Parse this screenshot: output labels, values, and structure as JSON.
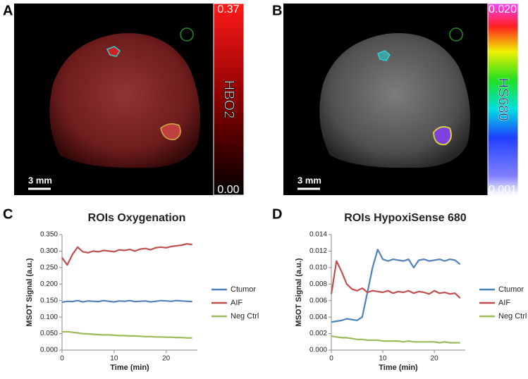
{
  "panels": [
    {
      "letter": "A",
      "scale": "3 mm",
      "cbar_max": "0.37",
      "cbar_min": "0.00",
      "cbar_label": "HBO2"
    },
    {
      "letter": "B",
      "scale": "3 mm",
      "cbar_max": "0.020",
      "cbar_min": "0.001",
      "cbar_label": "HS680"
    }
  ],
  "chart_data": [
    {
      "type": "line",
      "panel_label": "C",
      "title": "ROIs Oxygenation",
      "x_label": "Time (min)",
      "y_label": "MSOT Signal (a.u.)",
      "x": [
        0,
        1,
        2,
        3,
        4,
        5,
        6,
        7,
        8,
        9,
        10,
        11,
        12,
        13,
        14,
        15,
        16,
        17,
        18,
        19,
        20,
        21,
        22,
        23,
        24,
        25
      ],
      "xlim": [
        0,
        26
      ],
      "xticks": [
        0,
        10,
        20
      ],
      "ylim": [
        0,
        0.35
      ],
      "yticks": [
        {
          "value": 0,
          "label": "0.000"
        },
        {
          "value": 0.05,
          "label": "0.050"
        },
        {
          "value": 0.1,
          "label": "0.100"
        },
        {
          "value": 0.15,
          "label": "0.150"
        },
        {
          "value": 0.2,
          "label": "0.200"
        },
        {
          "value": 0.25,
          "label": "0.250"
        },
        {
          "value": 0.3,
          "label": "0.300"
        },
        {
          "value": 0.35,
          "label": "0.350"
        }
      ],
      "series": [
        {
          "name": "Ctumor",
          "color": "#4f81bd",
          "values": [
            0.145,
            0.148,
            0.147,
            0.15,
            0.146,
            0.149,
            0.148,
            0.147,
            0.15,
            0.148,
            0.146,
            0.149,
            0.148,
            0.15,
            0.147,
            0.148,
            0.149,
            0.146,
            0.148,
            0.15,
            0.149,
            0.148,
            0.15,
            0.149,
            0.148,
            0.147
          ]
        },
        {
          "name": "AIF",
          "color": "#c0504d",
          "values": [
            0.28,
            0.258,
            0.29,
            0.312,
            0.298,
            0.295,
            0.3,
            0.298,
            0.302,
            0.3,
            0.298,
            0.304,
            0.302,
            0.305,
            0.3,
            0.306,
            0.308,
            0.304,
            0.31,
            0.312,
            0.31,
            0.314,
            0.316,
            0.318,
            0.322,
            0.32
          ]
        },
        {
          "name": "Neg Ctrl",
          "color": "#9bbb59",
          "values": [
            0.055,
            0.056,
            0.054,
            0.052,
            0.05,
            0.049,
            0.048,
            0.047,
            0.046,
            0.046,
            0.045,
            0.044,
            0.044,
            0.043,
            0.043,
            0.042,
            0.041,
            0.041,
            0.04,
            0.04,
            0.039,
            0.039,
            0.038,
            0.038,
            0.037,
            0.037
          ]
        }
      ]
    },
    {
      "type": "line",
      "panel_label": "D",
      "title": "ROIs HypoxiSense 680",
      "x_label": "Time (min)",
      "y_label": "MSOT Signal (a.u.)",
      "x": [
        0,
        1,
        2,
        3,
        4,
        5,
        6,
        7,
        8,
        9,
        10,
        11,
        12,
        13,
        14,
        15,
        16,
        17,
        18,
        19,
        20,
        21,
        22,
        23,
        24,
        25
      ],
      "xlim": [
        0,
        26
      ],
      "xticks": [
        0,
        10,
        20
      ],
      "ylim": [
        0,
        0.014
      ],
      "yticks": [
        {
          "value": 0,
          "label": "0.000"
        },
        {
          "value": 0.002,
          "label": "0.002"
        },
        {
          "value": 0.004,
          "label": "0.004"
        },
        {
          "value": 0.006,
          "label": "0.006"
        },
        {
          "value": 0.008,
          "label": "0.008"
        },
        {
          "value": 0.01,
          "label": "0.010"
        },
        {
          "value": 0.012,
          "label": "0.012"
        },
        {
          "value": 0.014,
          "label": "0.014"
        }
      ],
      "series": [
        {
          "name": "Ctumor",
          "color": "#4f81bd",
          "values": [
            0.0034,
            0.0035,
            0.0036,
            0.0038,
            0.0037,
            0.0036,
            0.004,
            0.007,
            0.01,
            0.0122,
            0.011,
            0.0108,
            0.011,
            0.0109,
            0.0108,
            0.011,
            0.01,
            0.0109,
            0.011,
            0.0108,
            0.0109,
            0.011,
            0.0108,
            0.011,
            0.0109,
            0.0104
          ]
        },
        {
          "name": "AIF",
          "color": "#c0504d",
          "values": [
            0.0068,
            0.0108,
            0.0095,
            0.008,
            0.0074,
            0.0072,
            0.0075,
            0.007,
            0.0072,
            0.0071,
            0.007,
            0.0072,
            0.0069,
            0.0071,
            0.007,
            0.0072,
            0.0069,
            0.0071,
            0.007,
            0.0068,
            0.0072,
            0.0069,
            0.007,
            0.0068,
            0.0069,
            0.0063
          ]
        },
        {
          "name": "Neg Ctrl",
          "color": "#9bbb59",
          "values": [
            0.0017,
            0.0016,
            0.0015,
            0.0015,
            0.0014,
            0.0013,
            0.0013,
            0.0012,
            0.0012,
            0.0012,
            0.0011,
            0.0011,
            0.0011,
            0.0011,
            0.001,
            0.0011,
            0.001,
            0.001,
            0.001,
            0.001,
            0.001,
            0.0009,
            0.001,
            0.0009,
            0.0009,
            0.0009
          ]
        }
      ]
    }
  ]
}
